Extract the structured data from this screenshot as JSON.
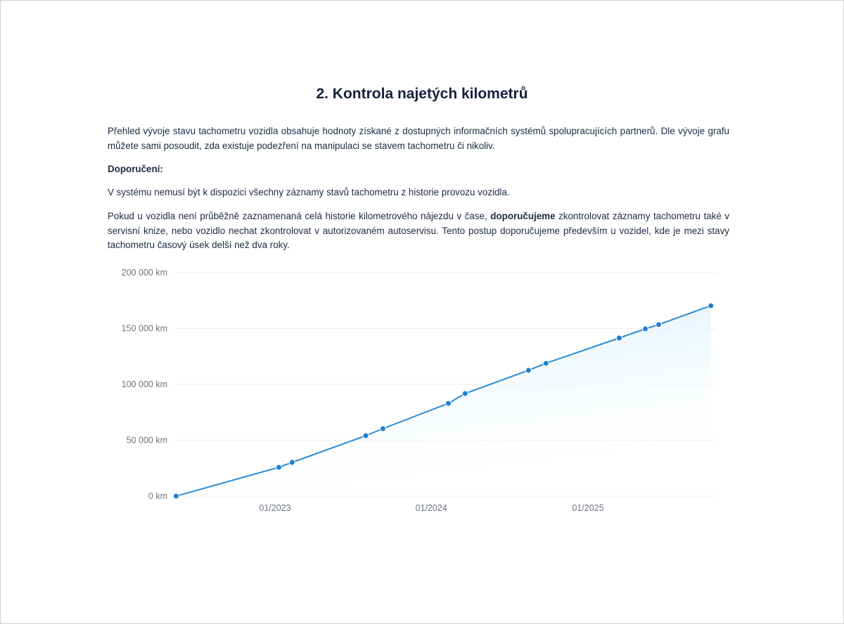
{
  "title": "2. Kontrola najetých kilometrů",
  "intro": "Přehled vývoje stavu tachometru vozidla obsahuje hodnoty získané z dostupných informačních systémů spolupracujících partnerů. Dle vývoje grafu můžete sami posoudit, zda existuje podezření na manipulaci se stavem tachometru či nikoliv.",
  "recommendation_heading": "Doporučení:",
  "note1": "V systému nemusí být k dispozici všechny záznamy stavů tachometru z historie provozu vozidla.",
  "note2": {
    "before": "Pokud u vozidla není průběžně zaznamenaná celá historie kilometrového nájezdu v čase, ",
    "bold": "doporučujeme",
    "after": " zkontrolovat záznamy tachometru také v servisní knize, nebo vozidlo nechat zkontrolovat v autorizovaném autoservisu. Tento postup doporučujeme především u vozidel, kde je mezi stavy tachometru časový úsek delší než dva roky."
  },
  "chart_data": {
    "type": "area",
    "xlabel": "",
    "ylabel": "",
    "ylim": [
      0,
      200000
    ],
    "yticks": [
      0,
      50000,
      100000,
      150000,
      200000
    ],
    "ytick_labels": [
      "0 km",
      "50 000 km",
      "100 000 km",
      "150 000 km",
      "200 000 km"
    ],
    "xticks": [
      "2023-01-01",
      "2024-01-01",
      "2025-01-01"
    ],
    "xtick_labels": [
      "01/2023",
      "01/2024",
      "01/2025"
    ],
    "grid": true,
    "colors": {
      "line": "#2a8bd6",
      "point": "#1f7fd1",
      "fill": "#d6eef9"
    },
    "x": [
      "2022-05-15",
      "2023-01-10",
      "2023-02-10",
      "2023-08-01",
      "2023-09-10",
      "2024-02-10",
      "2024-03-20",
      "2024-08-15",
      "2024-09-25",
      "2025-03-15",
      "2025-05-15",
      "2025-06-15",
      "2025-10-15"
    ],
    "values": [
      0,
      25800,
      30200,
      54100,
      60400,
      83000,
      91800,
      112600,
      118900,
      141500,
      149700,
      153500,
      170400
    ]
  }
}
